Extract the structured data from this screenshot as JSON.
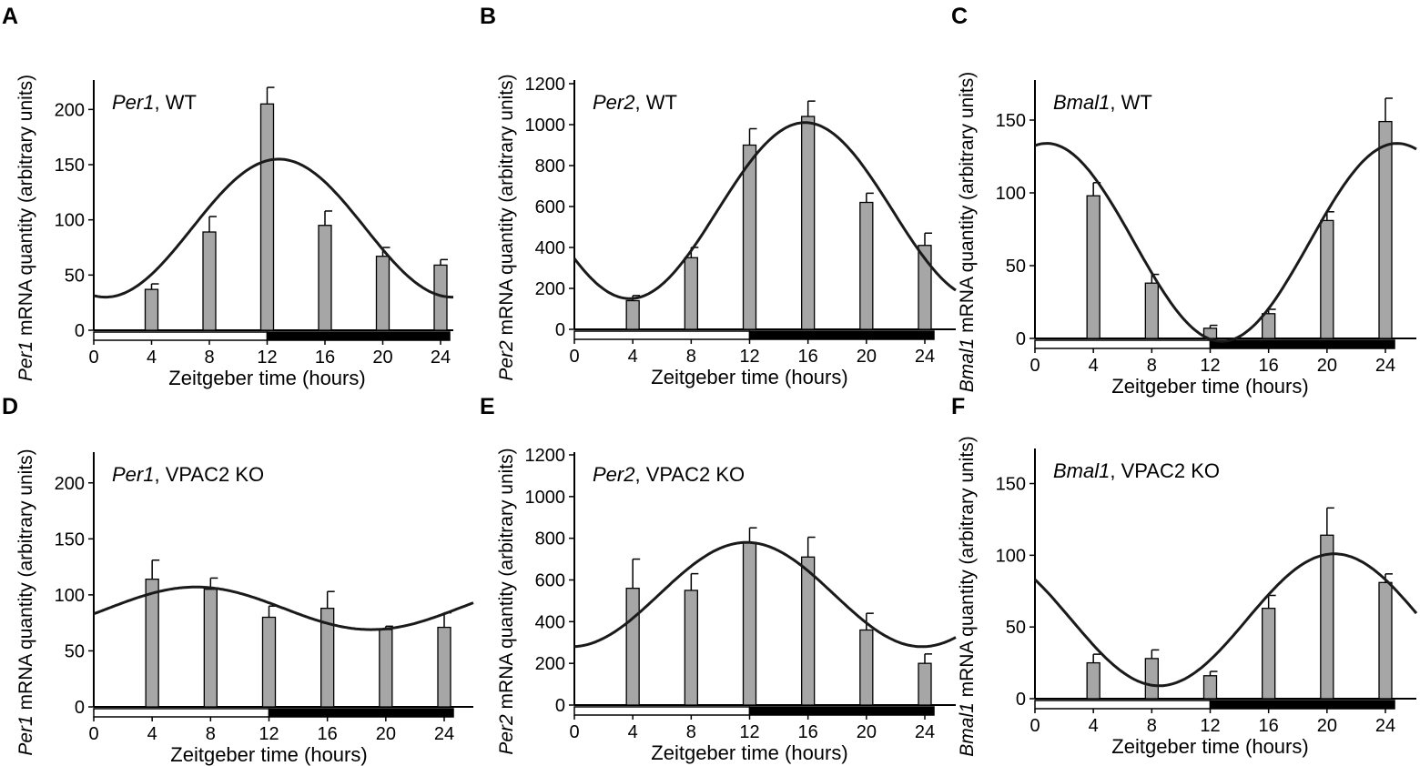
{
  "figure": {
    "x_tick_labels": [
      "0",
      "4",
      "8",
      "12",
      "16",
      "20",
      "24"
    ],
    "xlabel": "Zeitgeber time (hours)",
    "ylabel_suffix": " mRNA quantity (arbitrary units)"
  },
  "chart_data": [
    {
      "panel_label": "A",
      "gene": "Per1",
      "genotype": ", WT",
      "type": "bar",
      "x": [
        4,
        8,
        12,
        16,
        20,
        24
      ],
      "values": [
        37,
        89,
        205,
        95,
        67,
        59
      ],
      "errors": [
        5,
        14,
        15,
        13,
        8,
        5
      ],
      "ylim": [
        0,
        225
      ],
      "yticks": [
        0,
        50,
        100,
        150,
        200
      ],
      "curve": {
        "mean": 92.5,
        "amplitude": 62.5,
        "peak_time": 12.8
      },
      "light_dark_bar": {
        "light": [
          0,
          12
        ],
        "dark": [
          12,
          24
        ]
      }
    },
    {
      "panel_label": "B",
      "gene": "Per2",
      "genotype": ", WT",
      "type": "bar",
      "x": [
        4,
        8,
        12,
        16,
        20,
        24
      ],
      "values": [
        140,
        350,
        900,
        1040,
        620,
        410
      ],
      "errors": [
        25,
        50,
        80,
        75,
        45,
        60
      ],
      "ylim": [
        0,
        1200
      ],
      "yticks": [
        0,
        200,
        400,
        600,
        800,
        1000,
        1200
      ],
      "curve": {
        "mean": 580,
        "amplitude": 430,
        "peak_time": 15.8
      },
      "light_dark_bar": {
        "light": [
          0,
          12
        ],
        "dark": [
          12,
          24
        ]
      }
    },
    {
      "panel_label": "C",
      "gene": "Bmal1",
      "genotype": ", WT",
      "type": "bar",
      "x": [
        4,
        8,
        12,
        16,
        20,
        24
      ],
      "values": [
        98,
        38,
        7,
        17,
        81,
        149
      ],
      "errors": [
        9,
        6,
        2,
        3,
        6,
        16
      ],
      "ylim": [
        0,
        175
      ],
      "yticks": [
        0,
        50,
        100,
        150
      ],
      "curve": {
        "mean": 66,
        "amplitude": 68,
        "peak_time": 0.8
      },
      "light_dark_bar": {
        "light": [
          0,
          12
        ],
        "dark": [
          12,
          24
        ]
      }
    },
    {
      "panel_label": "D",
      "gene": "Per1",
      "genotype": ", VPAC2 KO",
      "type": "bar",
      "x": [
        4,
        8,
        12,
        16,
        20,
        24
      ],
      "values": [
        114,
        105,
        80,
        88,
        69,
        71
      ],
      "errors": [
        17,
        10,
        10,
        15,
        3,
        13
      ],
      "ylim": [
        0,
        225
      ],
      "yticks": [
        0,
        50,
        100,
        150,
        200
      ],
      "curve": {
        "mean": 88,
        "amplitude": 19,
        "peak_time": 7.0
      },
      "light_dark_bar": {
        "light": [
          0,
          12
        ],
        "dark": [
          12,
          24
        ]
      }
    },
    {
      "panel_label": "E",
      "gene": "Per2",
      "genotype": ", VPAC2 KO",
      "type": "bar",
      "x": [
        4,
        8,
        12,
        16,
        20,
        24
      ],
      "values": [
        560,
        550,
        780,
        710,
        360,
        200
      ],
      "errors": [
        140,
        80,
        70,
        95,
        80,
        45
      ],
      "ylim": [
        0,
        1200
      ],
      "yticks": [
        0,
        200,
        400,
        600,
        800,
        1000,
        1200
      ],
      "curve": {
        "mean": 530,
        "amplitude": 250,
        "peak_time": 11.8
      },
      "light_dark_bar": {
        "light": [
          0,
          12
        ],
        "dark": [
          12,
          24
        ]
      }
    },
    {
      "panel_label": "F",
      "gene": "Bmal1",
      "genotype": ", VPAC2 KO",
      "type": "bar",
      "x": [
        4,
        8,
        12,
        16,
        20,
        24
      ],
      "values": [
        25,
        28,
        16,
        63,
        114,
        81
      ],
      "errors": [
        6,
        6,
        3,
        9,
        19,
        6
      ],
      "ylim": [
        0,
        170
      ],
      "yticks": [
        0,
        50,
        100,
        150
      ],
      "curve": {
        "mean": 55,
        "amplitude": 46,
        "peak_time": 20.5
      },
      "light_dark_bar": {
        "light": [
          0,
          12
        ],
        "dark": [
          12,
          24
        ]
      }
    }
  ]
}
